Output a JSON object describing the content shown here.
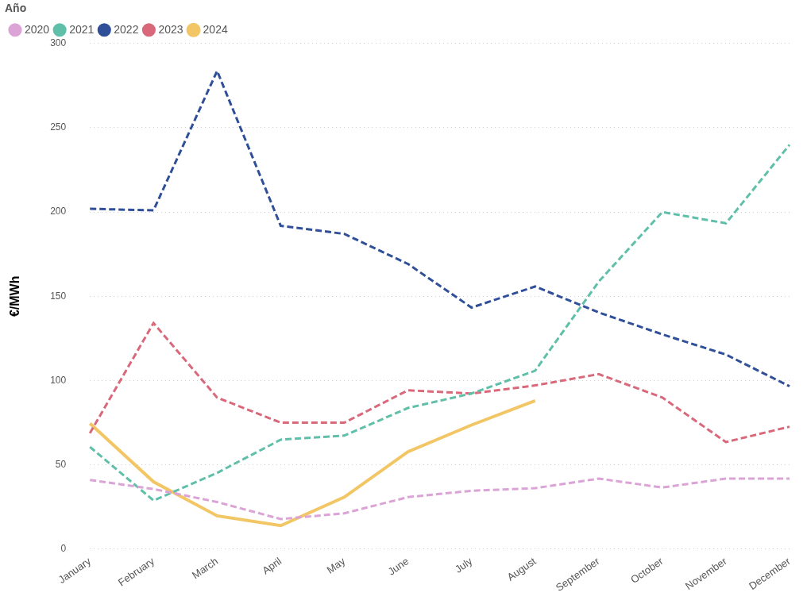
{
  "chart_data": {
    "type": "line",
    "y_label": "€/MWh",
    "legend_title": "Año",
    "legend": "top-left",
    "grid": "y",
    "categories": [
      "January",
      "February",
      "March",
      "April",
      "May",
      "June",
      "July",
      "August",
      "September",
      "October",
      "November",
      "December"
    ],
    "ylim": [
      0,
      300
    ],
    "yticks": [
      0,
      50,
      100,
      150,
      200,
      250,
      300
    ],
    "series": [
      {
        "name": "2020",
        "color": "#dba3d6",
        "line_style": "dashed",
        "values": [
          41,
          35.6,
          27.9,
          17.8,
          21.2,
          30.8,
          34.6,
          36.1,
          41.8,
          36.5,
          41.8,
          41.8
        ]
      },
      {
        "name": "2021",
        "color": "#5fbfa9",
        "line_style": "dashed",
        "values": [
          60.6,
          28.8,
          45.2,
          64.9,
          67.3,
          83.7,
          92.3,
          105.8,
          158.7,
          200,
          193.3,
          239.9
        ]
      },
      {
        "name": "2022",
        "color": "#2f4f99",
        "line_style": "dashed",
        "values": [
          201.9,
          201,
          283.7,
          191.8,
          187,
          169.2,
          143.3,
          155.8,
          140.4,
          127.4,
          115.4,
          96.6
        ]
      },
      {
        "name": "2023",
        "color": "#d9687b",
        "line_style": "dashed",
        "values": [
          68.8,
          134.1,
          89.9,
          75,
          75,
          94.2,
          92.3,
          97.1,
          103.8,
          89.9,
          63.5,
          72.6
        ]
      },
      {
        "name": "2024",
        "color": "#f2c665",
        "line_style": "solid",
        "values": [
          74.5,
          39.9,
          19.7,
          13.9,
          30.8,
          57.7,
          73.6,
          88,
          null,
          null,
          null,
          null
        ]
      }
    ]
  }
}
